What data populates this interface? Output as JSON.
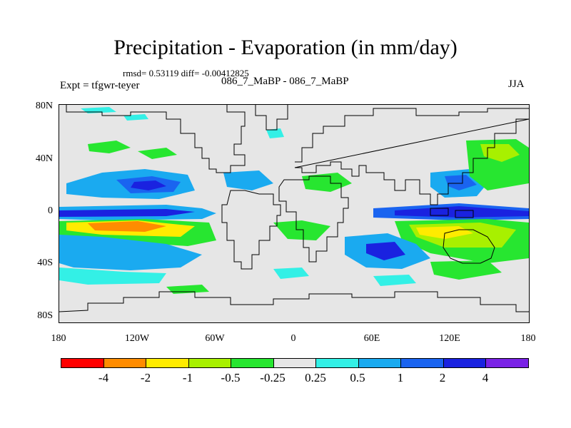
{
  "figure": {
    "title": "Precipitation - Evaporation (in mm/day)",
    "stats": "rmsd= 0.53119 diff= -0.00412825",
    "case_label": "086_7_MaBP - 086_7_MaBP",
    "expt_label": "Expt = tfgwr-teyer",
    "season": "JJA"
  },
  "map": {
    "lat_labels": [
      "80N",
      "40N",
      "0",
      "40S",
      "80S"
    ],
    "lon_labels": [
      "180",
      "120W",
      "60W",
      "0",
      "60E",
      "120E",
      "180"
    ],
    "colors": {
      "background": "#e6e6e6",
      "coast": "#000000"
    }
  },
  "colorbar": {
    "colors": [
      "#ff0000",
      "#ff8c00",
      "#ffeb00",
      "#a8f000",
      "#27e630",
      "#e6e6e6",
      "#33f0e6",
      "#1aaaf0",
      "#1a64f0",
      "#1a22e0",
      "#7a22e6"
    ],
    "labels": [
      "-4",
      "-2",
      "-1",
      "-0.5",
      "-0.25",
      "0.25",
      "0.5",
      "1",
      "2",
      "4"
    ]
  }
}
